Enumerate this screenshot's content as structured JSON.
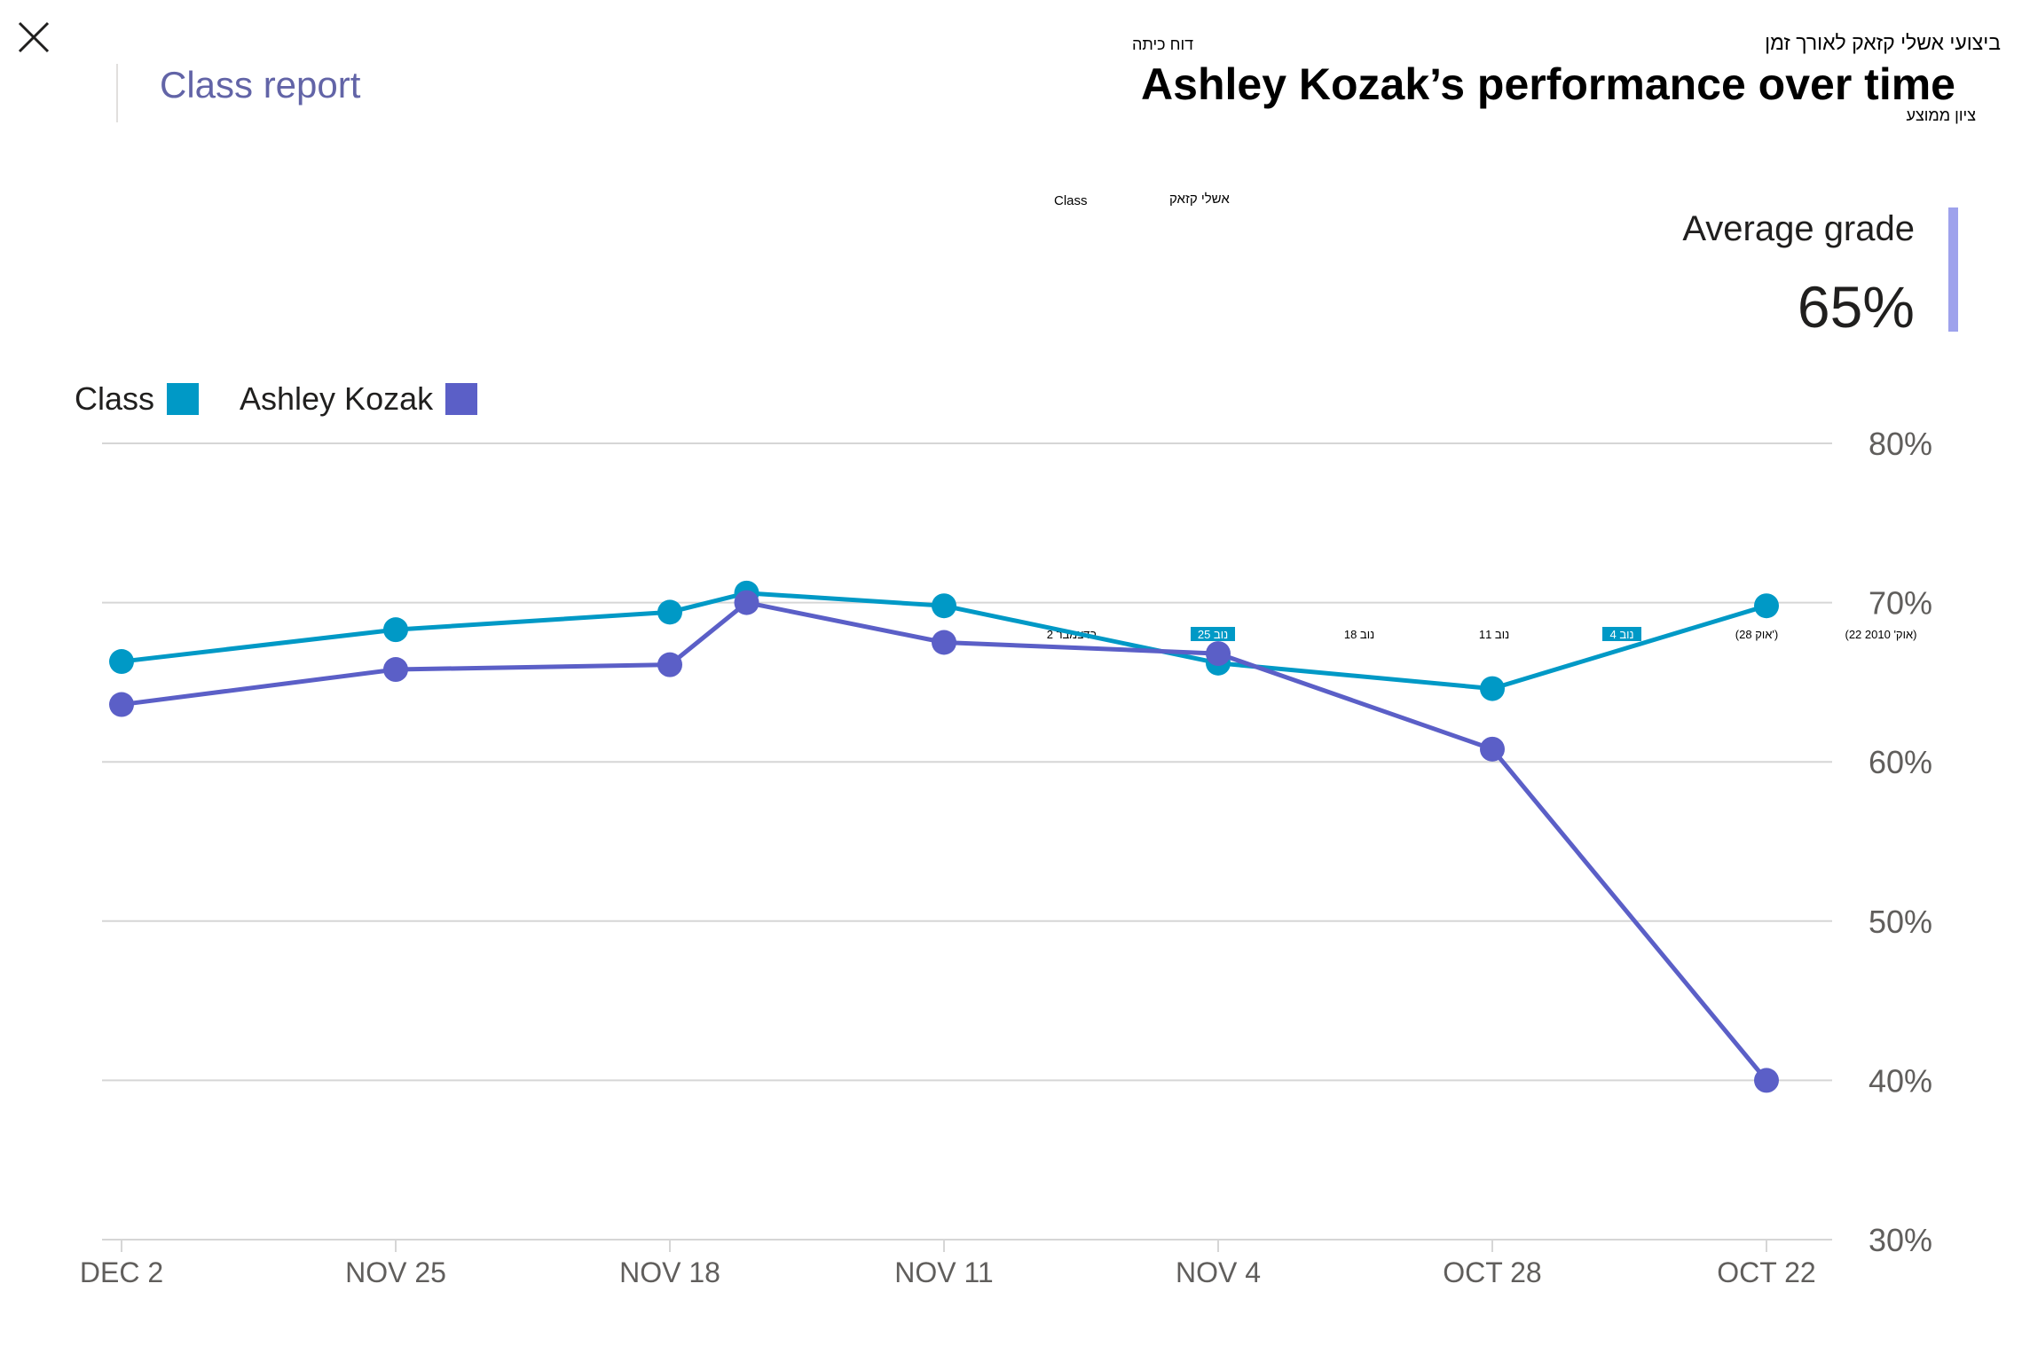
{
  "header": {
    "close_icon": "close-icon",
    "class_report_link": "Class report",
    "top_hebrew": "ביצועי אשלי קזאק לאורך זמן",
    "mid_hebrew": "דוח כיתה",
    "title": "Ashley Kozak’s performance over time",
    "sub_hebrew": "ציון ממוצע"
  },
  "mini_legend": {
    "class": "Class",
    "student": "אשלי קזאק"
  },
  "average": {
    "label": "Average grade",
    "value": "65%"
  },
  "legend": {
    "student": "Ashley Kozak",
    "class": "Class"
  },
  "colors": {
    "student": "#5b5fc7",
    "class": "#0099c6",
    "grid": "#d6d6d6",
    "axis_text": "#605e5c",
    "avg_bar": "#9ea2ec"
  },
  "chart_data": {
    "type": "line",
    "categories": [
      "DEC 2",
      "NOV 25",
      "NOV 18",
      "NOV 11",
      "NOV 4",
      "OCT 28",
      "OCT 22"
    ],
    "yticks": [
      "30%",
      "40%",
      "50%",
      "60%",
      "70%",
      "80%"
    ],
    "ylim": [
      30,
      80
    ],
    "series": [
      {
        "name": "Class",
        "points": [
          [
            0,
            66.3
          ],
          [
            1,
            68.3
          ],
          [
            2,
            69.4
          ],
          [
            2.28,
            70.6
          ],
          [
            3,
            69.8
          ],
          [
            4,
            66.2
          ],
          [
            5,
            64.6
          ],
          [
            6,
            69.8
          ]
        ]
      },
      {
        "name": "Ashley Kozak",
        "points": [
          [
            0,
            63.6
          ],
          [
            1,
            65.8
          ],
          [
            2,
            66.1
          ],
          [
            2.28,
            70.0
          ],
          [
            3,
            67.5
          ],
          [
            4,
            66.8
          ],
          [
            5,
            60.8
          ],
          [
            6,
            40.0
          ]
        ]
      }
    ],
    "hebrew_ticks": [
      "(22 אוק' 2010)",
      "(28 אוק')",
      "נוב 4",
      "נוב 11",
      "נוב 18",
      "נוב 25",
      "2 בדצמבר"
    ]
  }
}
